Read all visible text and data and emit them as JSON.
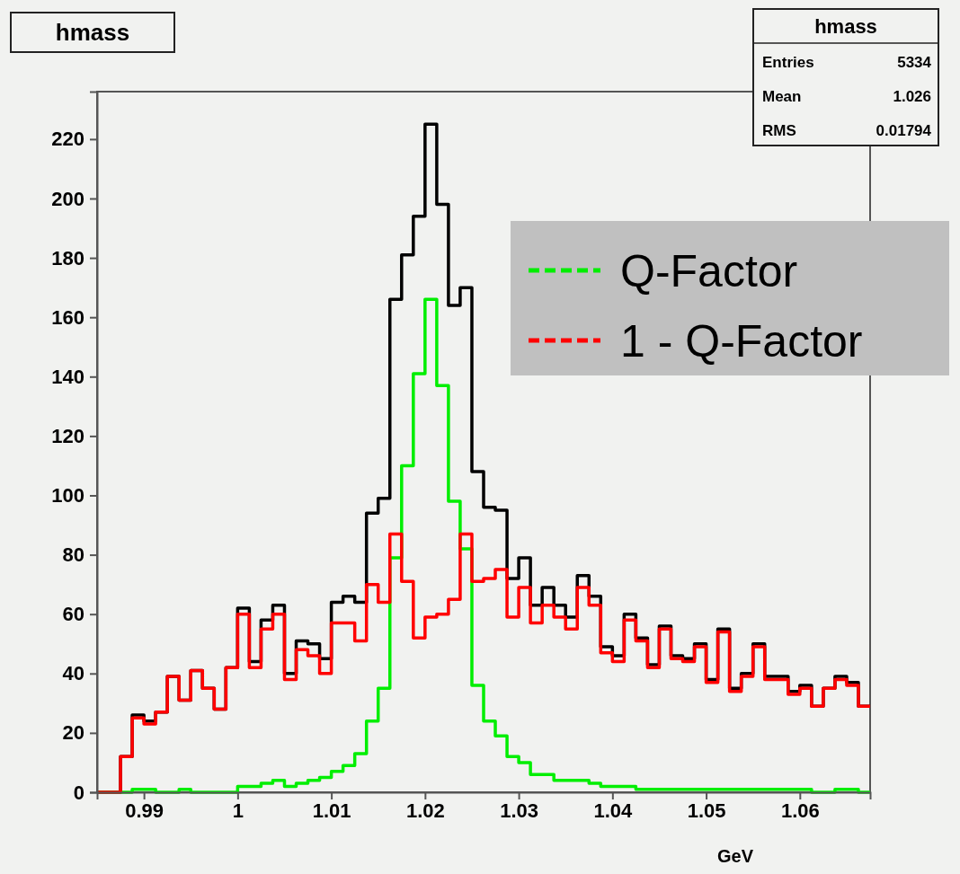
{
  "chart_data": {
    "type": "histogram",
    "title": "hmass",
    "xlabel": "GeV",
    "annotations": [
      "hmass",
      "Entries 5334",
      "Mean 1.026",
      "RMS 0.01794"
    ],
    "bins": [
      0.985,
      0.98625,
      0.9875,
      0.98875,
      0.99,
      0.99125,
      0.9925,
      0.99375,
      0.995,
      0.99625,
      0.9975,
      0.99875,
      1.0,
      1.00125,
      1.0025,
      1.00375,
      1.005,
      1.00625,
      1.0075,
      1.00875,
      1.01,
      1.01125,
      1.0125,
      1.01375,
      1.015,
      1.01625,
      1.0175,
      1.01875,
      1.02,
      1.02125,
      1.0225,
      1.02375,
      1.025,
      1.02625,
      1.0275,
      1.02875,
      1.03,
      1.03125,
      1.0325,
      1.03375,
      1.035,
      1.03625,
      1.0375,
      1.03875,
      1.04,
      1.04125,
      1.0425,
      1.04375,
      1.045,
      1.04625,
      1.0475,
      1.04875,
      1.05,
      1.05125,
      1.0525,
      1.05375,
      1.055,
      1.05625,
      1.0575,
      1.05875,
      1.06,
      1.06125,
      1.0625,
      1.06375,
      1.065,
      1.06625,
      1.0675
    ],
    "series": [
      {
        "color": "#000000",
        "values": [
          0,
          0,
          12,
          26,
          24,
          27,
          39,
          31,
          41,
          35,
          28,
          42,
          62,
          44,
          58,
          63,
          40,
          51,
          50,
          45,
          64,
          66,
          64,
          94,
          99,
          166,
          181,
          194,
          225,
          198,
          164,
          170,
          108,
          96,
          95,
          72,
          79,
          63,
          69,
          63,
          59,
          73,
          66,
          49,
          46,
          60,
          52,
          43,
          56,
          46,
          45,
          50,
          38,
          55,
          35,
          40,
          50,
          39,
          39,
          34,
          36,
          29,
          35,
          39,
          37,
          29
        ]
      },
      {
        "name": "Q-Factor",
        "color": "#00ee00",
        "values": [
          0,
          0,
          0,
          1,
          1,
          0,
          0,
          1,
          0,
          0,
          0,
          0,
          2,
          2,
          3,
          4,
          2,
          3,
          4,
          5,
          7,
          9,
          13,
          24,
          35,
          79,
          110,
          141,
          166,
          137,
          98,
          82,
          36,
          24,
          19,
          12,
          10,
          6,
          6,
          4,
          4,
          4,
          3,
          2,
          2,
          2,
          1,
          1,
          1,
          1,
          1,
          1,
          1,
          1,
          1,
          1,
          1,
          1,
          1,
          1,
          1,
          0,
          0,
          1,
          1,
          0
        ]
      },
      {
        "name": "1 - Q-Factor",
        "color": "#ff0000",
        "values": [
          0,
          0,
          12,
          25,
          23,
          27,
          39,
          31,
          41,
          35,
          28,
          42,
          60,
          42,
          55,
          60,
          38,
          48,
          46,
          40,
          57,
          57,
          51,
          70,
          64,
          87,
          71,
          52,
          59,
          60,
          65,
          87,
          71,
          72,
          75,
          59,
          69,
          57,
          63,
          59,
          55,
          69,
          63,
          47,
          44,
          58,
          51,
          42,
          55,
          45,
          44,
          49,
          37,
          54,
          34,
          39,
          49,
          38,
          38,
          33,
          35,
          29,
          35,
          38,
          36,
          29
        ]
      }
    ],
    "xlim": [
      0.985,
      1.0675
    ],
    "xticks": [
      0.99,
      1,
      1.01,
      1.02,
      1.03,
      1.04,
      1.05,
      1.06
    ],
    "ylim": [
      0,
      236
    ],
    "yticks": [
      0,
      20,
      40,
      60,
      80,
      100,
      120,
      140,
      160,
      180,
      200,
      220
    ],
    "legend": "top right",
    "line_style": "dashed",
    "grid": false
  }
}
